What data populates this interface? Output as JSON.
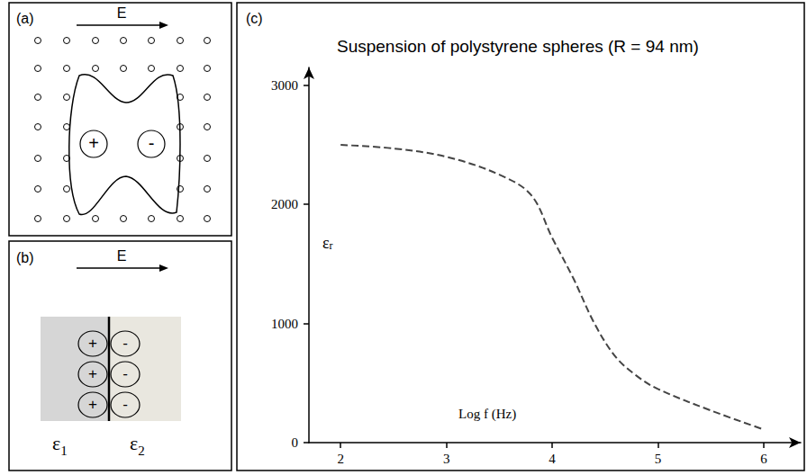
{
  "panels": [
    {
      "label": "(a)",
      "field_label": "E",
      "charges": [
        "+",
        "-"
      ]
    },
    {
      "label": "(b)",
      "field_label": "E",
      "charges": [
        "+",
        "+",
        "+",
        "-",
        "-",
        "-"
      ],
      "media": [
        "ε1",
        "ε2"
      ]
    },
    {
      "label": "(c)"
    }
  ],
  "chart_data": {
    "type": "line",
    "title": "Suspension of polystyrene spheres (R = 94 nm)",
    "xlabel": "Log f (Hz)",
    "ylabel": "εr",
    "x": [
      2,
      2.5,
      3,
      3.5,
      3.8,
      4,
      4.2,
      4.4,
      4.6,
      4.8,
      5,
      5.5,
      6
    ],
    "values": [
      2500,
      2470,
      2400,
      2250,
      2080,
      1720,
      1380,
      1000,
      720,
      560,
      450,
      270,
      110
    ],
    "color": "#444444",
    "line_style": "dashed",
    "xlim": [
      1.7,
      6.35
    ],
    "xticks": [
      2,
      3,
      4,
      5,
      6
    ],
    "ylim": [
      0,
      3150
    ],
    "yticks": [
      0,
      1000,
      2000,
      3000
    ],
    "grid": false
  }
}
